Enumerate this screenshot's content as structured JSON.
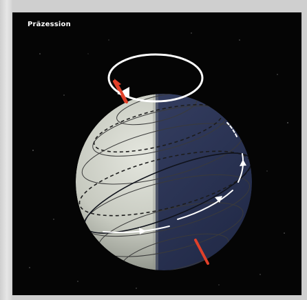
{
  "figure": {
    "title": "Präzession"
  },
  "colors": {
    "space": "#050505",
    "globe_lit": "#cfd2c8",
    "globe_dark": "#2b3556",
    "axis": "#e0402a",
    "precession_ring": "#ffffff",
    "arrows": "#ffffff",
    "latitude_lines": "#3a3a3a"
  }
}
